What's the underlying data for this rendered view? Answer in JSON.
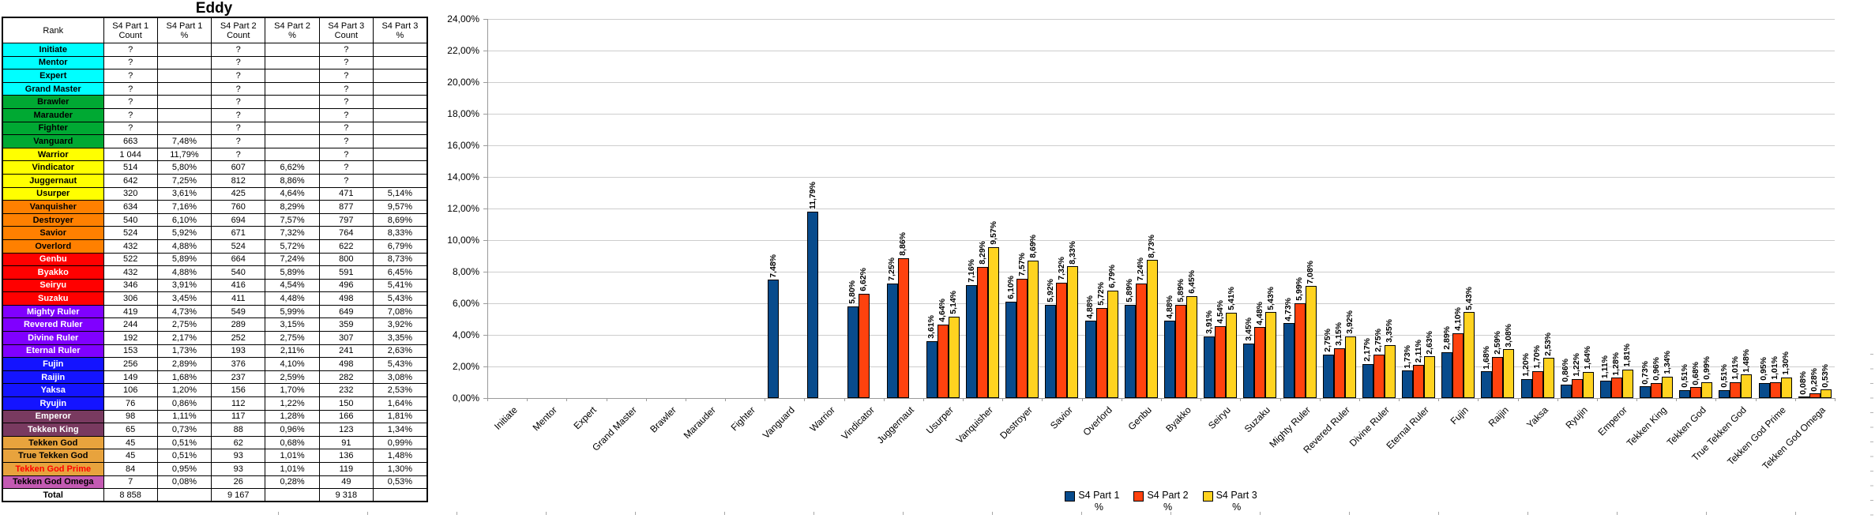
{
  "title": "Eddy",
  "table": {
    "rank_header": "Rank",
    "col_headers": [
      [
        "S4 Part 1",
        "Count"
      ],
      [
        "S4 Part 1",
        "%"
      ],
      [
        "S4 Part 2",
        "Count"
      ],
      [
        "S4 Part 2",
        "%"
      ],
      [
        "S4 Part 3",
        "Count"
      ],
      [
        "S4 Part 3",
        "%"
      ]
    ],
    "rows": [
      {
        "rank": "Initiate",
        "bg": "#00FFFF",
        "fg": "#000000",
        "cells": [
          "?",
          "",
          "?",
          "",
          "?",
          ""
        ]
      },
      {
        "rank": "Mentor",
        "bg": "#00FFFF",
        "fg": "#000000",
        "cells": [
          "?",
          "",
          "?",
          "",
          "?",
          ""
        ]
      },
      {
        "rank": "Expert",
        "bg": "#00FFFF",
        "fg": "#000000",
        "cells": [
          "?",
          "",
          "?",
          "",
          "?",
          ""
        ]
      },
      {
        "rank": "Grand Master",
        "bg": "#00FFFF",
        "fg": "#000000",
        "cells": [
          "?",
          "",
          "?",
          "",
          "?",
          ""
        ]
      },
      {
        "rank": "Brawler",
        "bg": "#00A933",
        "fg": "#000000",
        "cells": [
          "?",
          "",
          "?",
          "",
          "?",
          ""
        ]
      },
      {
        "rank": "Marauder",
        "bg": "#00A933",
        "fg": "#000000",
        "cells": [
          "?",
          "",
          "?",
          "",
          "?",
          ""
        ]
      },
      {
        "rank": "Fighter",
        "bg": "#00A933",
        "fg": "#000000",
        "cells": [
          "?",
          "",
          "?",
          "",
          "?",
          ""
        ]
      },
      {
        "rank": "Vanguard",
        "bg": "#00A933",
        "fg": "#000000",
        "cells": [
          "663",
          "7,48%",
          "?",
          "",
          "?",
          ""
        ]
      },
      {
        "rank": "Warrior",
        "bg": "#FFFF00",
        "fg": "#000000",
        "cells": [
          "1 044",
          "11,79%",
          "?",
          "",
          "?",
          ""
        ]
      },
      {
        "rank": "Vindicator",
        "bg": "#FFFF00",
        "fg": "#000000",
        "cells": [
          "514",
          "5,80%",
          "607",
          "6,62%",
          "?",
          ""
        ]
      },
      {
        "rank": "Juggernaut",
        "bg": "#FFFF00",
        "fg": "#000000",
        "cells": [
          "642",
          "7,25%",
          "812",
          "8,86%",
          "?",
          ""
        ]
      },
      {
        "rank": "Usurper",
        "bg": "#FFFF00",
        "fg": "#000000",
        "cells": [
          "320",
          "3,61%",
          "425",
          "4,64%",
          "471",
          "5,14%"
        ]
      },
      {
        "rank": "Vanquisher",
        "bg": "#FF8000",
        "fg": "#000000",
        "cells": [
          "634",
          "7,16%",
          "760",
          "8,29%",
          "877",
          "9,57%"
        ]
      },
      {
        "rank": "Destroyer",
        "bg": "#FF8000",
        "fg": "#000000",
        "cells": [
          "540",
          "6,10%",
          "694",
          "7,57%",
          "797",
          "8,69%"
        ]
      },
      {
        "rank": "Savior",
        "bg": "#FF8000",
        "fg": "#000000",
        "cells": [
          "524",
          "5,92%",
          "671",
          "7,32%",
          "764",
          "8,33%"
        ]
      },
      {
        "rank": "Overlord",
        "bg": "#FF8000",
        "fg": "#000000",
        "cells": [
          "432",
          "4,88%",
          "524",
          "5,72%",
          "622",
          "6,79%"
        ]
      },
      {
        "rank": "Genbu",
        "bg": "#FF0000",
        "fg": "#FFFFFF",
        "cells": [
          "522",
          "5,89%",
          "664",
          "7,24%",
          "800",
          "8,73%"
        ]
      },
      {
        "rank": "Byakko",
        "bg": "#FF0000",
        "fg": "#FFFFFF",
        "cells": [
          "432",
          "4,88%",
          "540",
          "5,89%",
          "591",
          "6,45%"
        ]
      },
      {
        "rank": "Seiryu",
        "bg": "#FF0000",
        "fg": "#FFFFFF",
        "cells": [
          "346",
          "3,91%",
          "416",
          "4,54%",
          "496",
          "5,41%"
        ]
      },
      {
        "rank": "Suzaku",
        "bg": "#FF0000",
        "fg": "#FFFFFF",
        "cells": [
          "306",
          "3,45%",
          "411",
          "4,48%",
          "498",
          "5,43%"
        ]
      },
      {
        "rank": "Mighty Ruler",
        "bg": "#8000FF",
        "fg": "#FFFFFF",
        "cells": [
          "419",
          "4,73%",
          "549",
          "5,99%",
          "649",
          "7,08%"
        ]
      },
      {
        "rank": "Revered Ruler",
        "bg": "#8000FF",
        "fg": "#FFFFFF",
        "cells": [
          "244",
          "2,75%",
          "289",
          "3,15%",
          "359",
          "3,92%"
        ]
      },
      {
        "rank": "Divine Ruler",
        "bg": "#8000FF",
        "fg": "#FFFFFF",
        "cells": [
          "192",
          "2,17%",
          "252",
          "2,75%",
          "307",
          "3,35%"
        ]
      },
      {
        "rank": "Eternal Ruler",
        "bg": "#8000FF",
        "fg": "#FFFFFF",
        "cells": [
          "153",
          "1,73%",
          "193",
          "2,11%",
          "241",
          "2,63%"
        ]
      },
      {
        "rank": "Fujin",
        "bg": "#1414FF",
        "fg": "#FFFFFF",
        "cells": [
          "256",
          "2,89%",
          "376",
          "4,10%",
          "498",
          "5,43%"
        ]
      },
      {
        "rank": "Raijin",
        "bg": "#1414FF",
        "fg": "#FFFFFF",
        "cells": [
          "149",
          "1,68%",
          "237",
          "2,59%",
          "282",
          "3,08%"
        ]
      },
      {
        "rank": "Yaksa",
        "bg": "#1414FF",
        "fg": "#FFFFFF",
        "cells": [
          "106",
          "1,20%",
          "156",
          "1,70%",
          "232",
          "2,53%"
        ]
      },
      {
        "rank": "Ryujin",
        "bg": "#1414FF",
        "fg": "#FFFFFF",
        "cells": [
          "76",
          "0,86%",
          "112",
          "1,22%",
          "150",
          "1,64%"
        ]
      },
      {
        "rank": "Emperor",
        "bg": "#793A60",
        "fg": "#FFFFFF",
        "cells": [
          "98",
          "1,11%",
          "117",
          "1,28%",
          "166",
          "1,81%"
        ]
      },
      {
        "rank": "Tekken King",
        "bg": "#793A60",
        "fg": "#FFFFFF",
        "cells": [
          "65",
          "0,73%",
          "88",
          "0,96%",
          "123",
          "1,34%"
        ]
      },
      {
        "rank": "Tekken God",
        "bg": "#E8A33D",
        "fg": "#000000",
        "cells": [
          "45",
          "0,51%",
          "62",
          "0,68%",
          "91",
          "0,99%"
        ]
      },
      {
        "rank": "True Tekken God",
        "bg": "#E8A33D",
        "fg": "#000000",
        "cells": [
          "45",
          "0,51%",
          "93",
          "1,01%",
          "136",
          "1,48%"
        ]
      },
      {
        "rank": "Tekken God Prime",
        "bg": "#E8A33D",
        "fg": "#FF0000",
        "cells": [
          "84",
          "0,95%",
          "93",
          "1,01%",
          "119",
          "1,30%"
        ]
      },
      {
        "rank": "Tekken God Omega",
        "bg": "#C45AB3",
        "fg": "#000000",
        "cells": [
          "7",
          "0,08%",
          "26",
          "0,28%",
          "49",
          "0,53%"
        ]
      }
    ],
    "total": {
      "label": "Total",
      "cells": [
        "8 858",
        "",
        "9 167",
        "",
        "9 318",
        ""
      ]
    }
  },
  "chart_data": {
    "type": "bar",
    "title": "",
    "xlabel": "",
    "ylabel": "",
    "ylim": [
      0,
      24
    ],
    "ytick_step": 2,
    "ytick_format": "0,00%",
    "grid": true,
    "legend_position": "bottom",
    "categories": [
      "Initiate",
      "Mentor",
      "Expert",
      "Grand Master",
      "Brawler",
      "Marauder",
      "Fighter",
      "Vanguard",
      "Warrior",
      "Vindicator",
      "Juggernaut",
      "Usurper",
      "Vanquisher",
      "Destroyer",
      "Savior",
      "Overlord",
      "Genbu",
      "Byakko",
      "Seiryu",
      "Suzaku",
      "Mighty Ruler",
      "Revered Ruler",
      "Divine Ruler",
      "Eternal Ruler",
      "Fujin",
      "Raijin",
      "Yaksa",
      "Ryujin",
      "Emperor",
      "Tekken King",
      "Tekken God",
      "True Tekken God",
      "Tekken God Prime",
      "Tekken God Omega"
    ],
    "series": [
      {
        "name": "S4 Part 1 %",
        "legend": [
          "S4 Part 1",
          "%"
        ],
        "color": "#084B8C",
        "values": [
          null,
          null,
          null,
          null,
          null,
          null,
          null,
          7.48,
          11.79,
          5.8,
          7.25,
          3.61,
          7.16,
          6.1,
          5.92,
          4.88,
          5.89,
          4.88,
          3.91,
          3.45,
          4.73,
          2.75,
          2.17,
          1.73,
          2.89,
          1.68,
          1.2,
          0.86,
          1.11,
          0.73,
          0.51,
          0.51,
          0.95,
          0.08
        ]
      },
      {
        "name": "S4 Part 2 %",
        "legend": [
          "S4 Part 2",
          "%"
        ],
        "color": "#FF420E",
        "values": [
          null,
          null,
          null,
          null,
          null,
          null,
          null,
          null,
          null,
          6.62,
          8.86,
          4.64,
          8.29,
          7.57,
          7.32,
          5.72,
          7.24,
          5.89,
          4.54,
          4.48,
          5.99,
          3.15,
          2.75,
          2.11,
          4.1,
          2.59,
          1.7,
          1.22,
          1.28,
          0.96,
          0.68,
          1.01,
          1.01,
          0.28
        ]
      },
      {
        "name": "S4 Part 3 %",
        "legend": [
          "S4 Part 3",
          "%"
        ],
        "color": "#FFD320",
        "values": [
          null,
          null,
          null,
          null,
          null,
          null,
          null,
          null,
          null,
          null,
          null,
          5.14,
          9.57,
          8.69,
          8.33,
          6.79,
          8.73,
          6.45,
          5.41,
          5.43,
          7.08,
          3.92,
          3.35,
          2.63,
          5.43,
          3.08,
          2.53,
          1.64,
          1.81,
          1.34,
          0.99,
          1.48,
          1.3,
          0.53
        ]
      }
    ]
  }
}
